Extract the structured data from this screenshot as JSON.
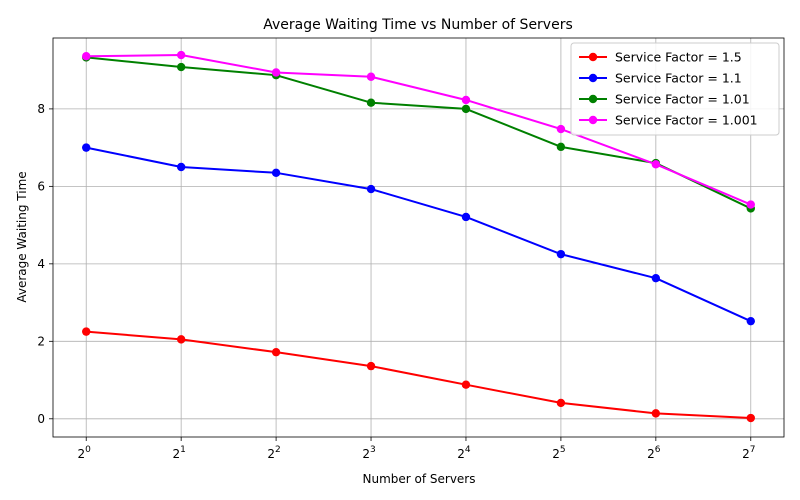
{
  "chart_data": {
    "type": "line",
    "title": "Average Waiting Time vs Number of Servers",
    "xlabel": "Number of Servers",
    "ylabel": "Average Waiting Time",
    "x": [
      1,
      2,
      4,
      8,
      16,
      32,
      64,
      128
    ],
    "x_scale": "log2",
    "x_tick_labels": [
      {
        "base": "2",
        "exp": "0"
      },
      {
        "base": "2",
        "exp": "1"
      },
      {
        "base": "2",
        "exp": "2"
      },
      {
        "base": "2",
        "exp": "3"
      },
      {
        "base": "2",
        "exp": "4"
      },
      {
        "base": "2",
        "exp": "5"
      },
      {
        "base": "2",
        "exp": "6"
      },
      {
        "base": "2",
        "exp": "7"
      }
    ],
    "y_ticks": [
      0,
      2,
      4,
      6,
      8
    ],
    "ylim": [
      -0.47,
      9.83
    ],
    "grid": true,
    "legend_position": "top-right",
    "series": [
      {
        "name": "Service Factor = 1.5",
        "color": "#ff0000",
        "values": [
          2.25,
          2.05,
          1.72,
          1.36,
          0.88,
          0.41,
          0.14,
          0.02
        ]
      },
      {
        "name": "Service Factor = 1.1",
        "color": "#0000ff",
        "values": [
          7.0,
          6.5,
          6.35,
          5.93,
          5.21,
          4.25,
          3.63,
          2.52
        ]
      },
      {
        "name": "Service Factor = 1.01",
        "color": "#008000",
        "values": [
          9.33,
          9.08,
          8.87,
          8.16,
          8.0,
          7.02,
          6.6,
          5.43
        ]
      },
      {
        "name": "Service Factor = 1.001",
        "color": "#ff00ff",
        "values": [
          9.36,
          9.39,
          8.94,
          8.83,
          8.23,
          7.48,
          6.57,
          5.53
        ]
      }
    ]
  }
}
